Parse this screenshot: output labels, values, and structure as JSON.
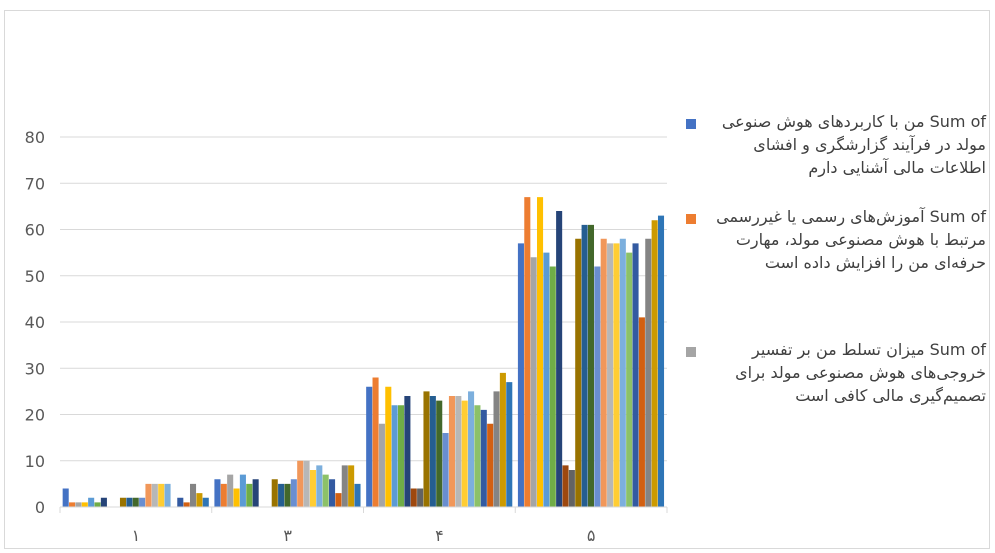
{
  "chart_data": {
    "type": "bar",
    "title": "",
    "xlabel": "",
    "ylabel": "",
    "ylim": [
      0,
      80
    ],
    "yticks": [
      0,
      10,
      20,
      30,
      40,
      50,
      60,
      70,
      80
    ],
    "grid": true,
    "legend_position": "right",
    "categories": [
      "١",
      "٣",
      "۴",
      "۵"
    ],
    "series": [
      {
        "name": "Sum of من با کاربردهای هوش صنوعی مولد در فرآیند گزارشگری و افشای اطلاعات مالی آشنایی دارم",
        "color": "#4472c4",
        "values": [
          4,
          6,
          26,
          57
        ]
      },
      {
        "name": "Sum of آموزش‌های رسمی یا غیررسمی مرتبط با هوش مصنوعی مولد، مهارت حرفه‌ای من را افزایش داده است",
        "color": "#ed7d31",
        "values": [
          1,
          5,
          28,
          67
        ]
      },
      {
        "name": "Sum of میزان تسلط من بر تفسیر خروجی‌های هوش مصنوعی مولد برای تصمیم‌گیری مالی کافی است",
        "color": "#a5a5a5",
        "values": [
          1,
          7,
          18,
          54
        ]
      },
      {
        "name": "",
        "color": "#ffc000",
        "values": [
          1,
          4,
          26,
          67
        ]
      },
      {
        "name": "",
        "color": "#5b9bd5",
        "values": [
          2,
          7,
          22,
          55
        ]
      },
      {
        "name": "",
        "color": "#70ad47",
        "values": [
          1,
          5,
          22,
          52
        ]
      },
      {
        "name": "",
        "color": "#264478",
        "values": [
          2,
          6,
          24,
          64
        ]
      },
      {
        "name": "",
        "color": "#9e480e",
        "values": [
          0,
          0,
          4,
          9
        ]
      },
      {
        "name": "",
        "color": "#636363",
        "values": [
          0,
          0,
          4,
          8
        ]
      },
      {
        "name": "",
        "color": "#997300",
        "values": [
          2,
          6,
          25,
          58
        ]
      },
      {
        "name": "",
        "color": "#255e91",
        "values": [
          2,
          5,
          24,
          61
        ]
      },
      {
        "name": "",
        "color": "#43682b",
        "values": [
          2,
          5,
          23,
          61
        ]
      },
      {
        "name": "",
        "color": "#698ed0",
        "values": [
          2,
          6,
          16,
          52
        ]
      },
      {
        "name": "",
        "color": "#f1975a",
        "values": [
          5,
          10,
          24,
          58
        ]
      },
      {
        "name": "",
        "color": "#b7b7b7",
        "values": [
          5,
          10,
          24,
          57
        ]
      },
      {
        "name": "",
        "color": "#ffcd33",
        "values": [
          5,
          8,
          23,
          57
        ]
      },
      {
        "name": "",
        "color": "#7cafdd",
        "values": [
          5,
          9,
          25,
          58
        ]
      },
      {
        "name": "",
        "color": "#8cc168",
        "values": [
          0,
          7,
          22,
          55
        ]
      },
      {
        "name": "",
        "color": "#335aa1",
        "values": [
          2,
          6,
          21,
          57
        ]
      },
      {
        "name": "",
        "color": "#d26012",
        "values": [
          1,
          3,
          18,
          41
        ]
      },
      {
        "name": "",
        "color": "#848484",
        "values": [
          5,
          9,
          25,
          58
        ]
      },
      {
        "name": "",
        "color": "#cc9a00",
        "values": [
          3,
          9,
          29,
          62
        ]
      },
      {
        "name": "",
        "color": "#2e75b6",
        "values": [
          2,
          5,
          27,
          63
        ]
      }
    ]
  },
  "legend": [
    {
      "prefix": "Sum of",
      "text": "من با کاربردهای هوش صنوعی مولد در فرآیند گزارشگری و افشای اطلاعات مالی آشنایی دارم",
      "color": "#4472c4"
    },
    {
      "prefix": "Sum of",
      "text": "آموزش‌های رسمی یا غیررسمی مرتبط با هوش مصنوعی مولد، مهارت حرفه‌ای من را افزایش داده است",
      "color": "#ed7d31"
    },
    {
      "prefix": "Sum of",
      "text": "میزان تسلط من بر تفسیر خروجی‌های هوش مصنوعی مولد برای تصمیم‌گیری مالی کافی است",
      "color": "#a5a5a5"
    }
  ]
}
